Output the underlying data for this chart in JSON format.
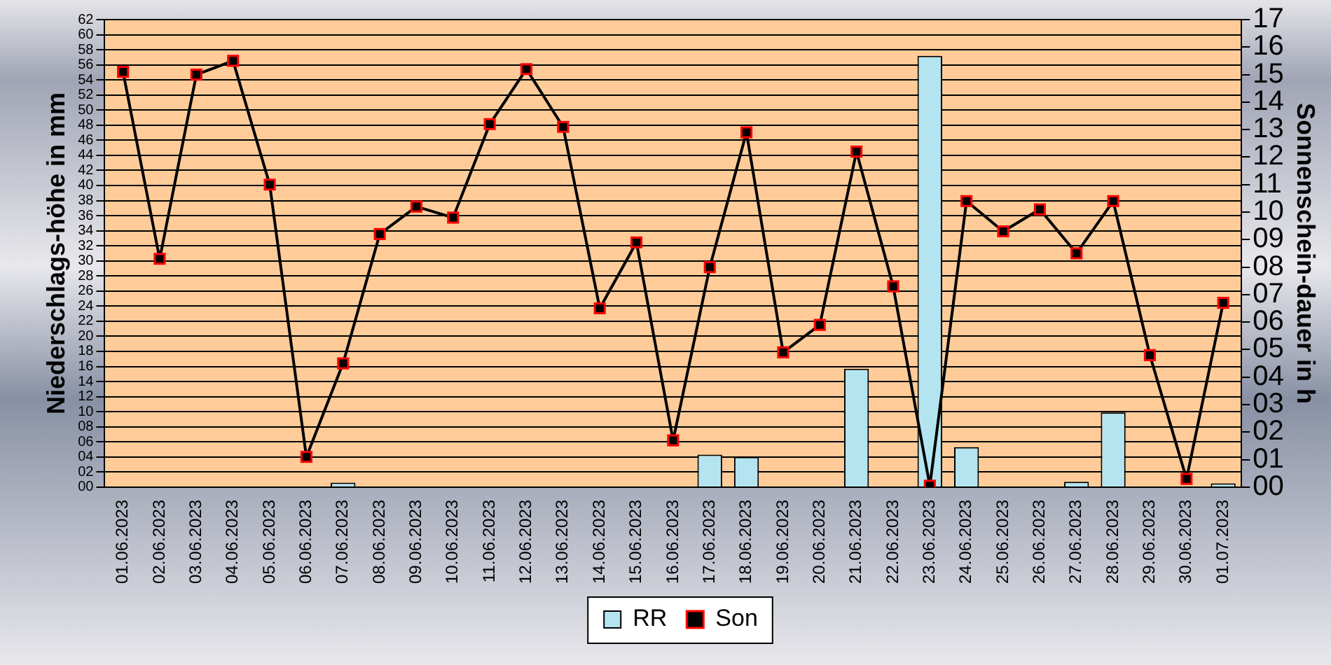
{
  "chart_data": {
    "type": "bar",
    "ylabel": "Niederschlags-höhe in mm",
    "y2label": "Sonnenschein-dauer in h",
    "categories": [
      "01.06.2023",
      "02.06.2023",
      "03.06.2023",
      "04.06.2023",
      "05.06.2023",
      "06.06.2023",
      "07.06.2023",
      "08.06.2023",
      "09.06.2023",
      "10.06.2023",
      "11.06.2023",
      "12.06.2023",
      "13.06.2023",
      "14.06.2023",
      "15.06.2023",
      "16.06.2023",
      "17.06.2023",
      "18.06.2023",
      "19.06.2023",
      "20.06.2023",
      "21.06.2023",
      "22.06.2023",
      "23.06.2023",
      "24.06.2023",
      "25.06.2023",
      "26.06.2023",
      "27.06.2023",
      "28.06.2023",
      "29.06.2023",
      "30.06.2023",
      "01.07.2023"
    ],
    "series": [
      {
        "name": "RR",
        "color": "#b4e4f0",
        "values": [
          0,
          0,
          0,
          0,
          0,
          0,
          0.6,
          0,
          0,
          0,
          0,
          0,
          0,
          0,
          0,
          0,
          4.3,
          4.0,
          0,
          0,
          15.7,
          0,
          57.2,
          5.3,
          0,
          0,
          0.7,
          9.9,
          0,
          0,
          0.5
        ]
      },
      {
        "name": "Son",
        "type": "line",
        "axis": "y2",
        "color": "#000000",
        "values": [
          15.1,
          8.3,
          15.0,
          15.5,
          11.0,
          1.1,
          4.5,
          9.2,
          10.2,
          9.8,
          13.2,
          15.2,
          13.1,
          6.5,
          8.9,
          1.7,
          8.0,
          12.9,
          4.9,
          5.9,
          12.2,
          7.3,
          0.05,
          10.4,
          9.3,
          10.1,
          8.5,
          10.4,
          4.8,
          0.3,
          6.7
        ]
      }
    ],
    "ylim": [
      0,
      62
    ],
    "yticks": [
      {
        "value": 0,
        "label": "00"
      },
      {
        "value": 2,
        "label": "02"
      },
      {
        "value": 4,
        "label": "04"
      },
      {
        "value": 6,
        "label": "06"
      },
      {
        "value": 8,
        "label": "08"
      },
      10,
      12,
      14,
      16,
      18,
      20,
      22,
      24,
      26,
      28,
      30,
      32,
      34,
      36,
      38,
      40,
      42,
      44,
      46,
      48,
      50,
      52,
      54,
      56,
      58,
      60,
      62
    ],
    "y2lim": [
      0,
      17
    ],
    "y2ticks": [
      {
        "value": 0,
        "label": "00"
      },
      {
        "value": 1,
        "label": "01"
      },
      {
        "value": 2,
        "label": "02"
      },
      {
        "value": 3,
        "label": "03"
      },
      {
        "value": 4,
        "label": "04"
      },
      {
        "value": 5,
        "label": "05"
      },
      {
        "value": 6,
        "label": "06"
      },
      {
        "value": 7,
        "label": "07"
      },
      {
        "value": 8,
        "label": "08"
      },
      {
        "value": 9,
        "label": "09"
      },
      10,
      11,
      12,
      13,
      14,
      15,
      16,
      17
    ],
    "grid": "y",
    "legend": "bottom",
    "marker": "square",
    "line_style": "solid"
  }
}
